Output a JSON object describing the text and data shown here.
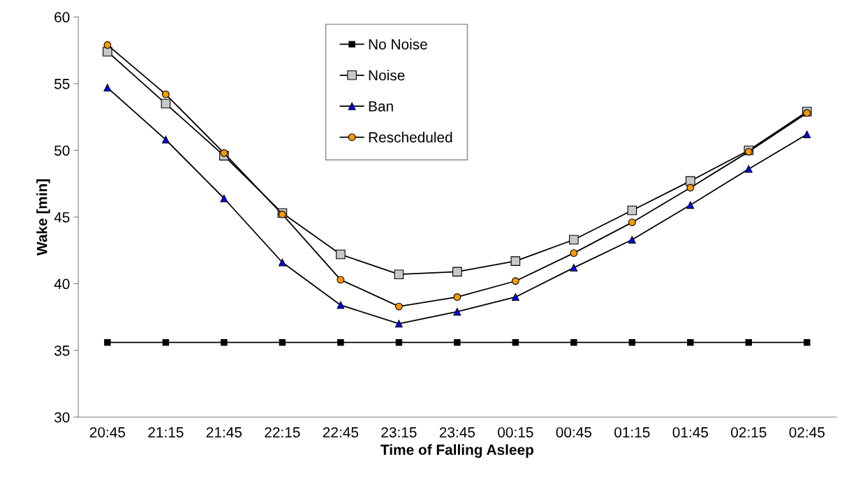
{
  "chart_data": {
    "type": "line",
    "xlabel": "Time of Falling Asleep",
    "ylabel": "Wake [min]",
    "categories": [
      "20:45",
      "21:15",
      "21:45",
      "22:15",
      "22:45",
      "23:15",
      "23:45",
      "00:15",
      "00:45",
      "01:15",
      "01:45",
      "02:15",
      "02:45"
    ],
    "series": [
      {
        "name": "No Noise",
        "color": "#000000",
        "marker": "square",
        "values": [
          35.6,
          35.6,
          35.6,
          35.6,
          35.6,
          35.6,
          35.6,
          35.6,
          35.6,
          35.6,
          35.6,
          35.6,
          35.6
        ]
      },
      {
        "name": "Noise",
        "color": "#c8c8c8",
        "marker": "square",
        "values": [
          57.4,
          53.5,
          49.6,
          45.3,
          42.2,
          40.7,
          40.9,
          41.7,
          43.3,
          45.5,
          47.7,
          50.0,
          52.9
        ]
      },
      {
        "name": "Ban",
        "color": "#0000ff",
        "marker": "triangle",
        "values": [
          54.7,
          50.8,
          46.4,
          41.6,
          38.4,
          37.0,
          37.9,
          39.0,
          41.2,
          43.3,
          45.9,
          48.6,
          51.2
        ]
      },
      {
        "name": "Rescheduled",
        "color": "#ff9900",
        "marker": "circle",
        "values": [
          57.9,
          54.2,
          49.8,
          45.2,
          40.3,
          38.3,
          39.0,
          40.2,
          42.3,
          44.6,
          47.2,
          49.9,
          52.8
        ]
      }
    ],
    "ylim": [
      30,
      60
    ],
    "yticks": [
      30,
      35,
      40,
      45,
      50,
      55,
      60
    ],
    "grid": false,
    "legend": "top",
    "line_style": "solid"
  }
}
